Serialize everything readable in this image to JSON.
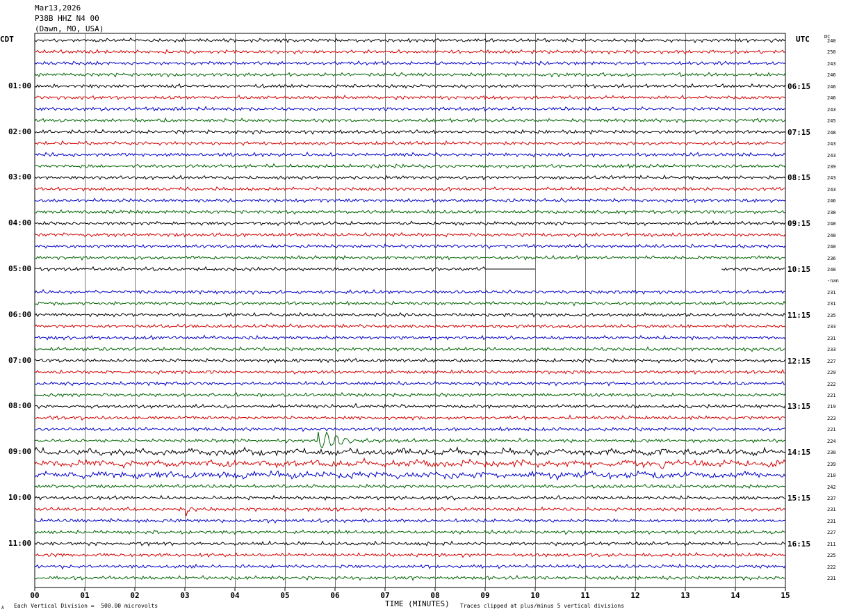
{
  "header": {
    "date": "Mar13,2026",
    "station": "P38B HHZ N4 00",
    "location": "(Dawn, MO, USA)"
  },
  "tz_left": "CDT",
  "tz_right": "UTC",
  "dc_header": "DC",
  "footer": {
    "xaxis_title": "TIME (MINUTES)",
    "scale_note": "Each Vertical Division =  500.00 microvolts",
    "clip_note": "Traces clipped at plus/minus 5 vertical divisions",
    "mark": "A"
  },
  "colors": {
    "trace_cycle": [
      "#000000",
      "#d40000",
      "#0000c8",
      "#006400"
    ],
    "grid": "#000000"
  },
  "chart_data": {
    "type": "line",
    "title": "",
    "xlabel": "TIME (MINUTES)",
    "xlim": [
      0,
      15
    ],
    "x_ticks": [
      "00",
      "01",
      "02",
      "03",
      "04",
      "05",
      "06",
      "07",
      "08",
      "09",
      "10",
      "11",
      "12",
      "13",
      "14",
      "15"
    ],
    "row_count": 48,
    "left_time_labels": [
      {
        "row": 4,
        "text": "01:00"
      },
      {
        "row": 8,
        "text": "02:00"
      },
      {
        "row": 12,
        "text": "03:00"
      },
      {
        "row": 16,
        "text": "04:00"
      },
      {
        "row": 20,
        "text": "05:00"
      },
      {
        "row": 24,
        "text": "06:00"
      },
      {
        "row": 28,
        "text": "07:00"
      },
      {
        "row": 32,
        "text": "08:00"
      },
      {
        "row": 36,
        "text": "09:00"
      },
      {
        "row": 40,
        "text": "10:00"
      },
      {
        "row": 44,
        "text": "11:00"
      }
    ],
    "right_time_labels": [
      {
        "row": 4,
        "text": "06:15"
      },
      {
        "row": 8,
        "text": "07:15"
      },
      {
        "row": 12,
        "text": "08:15"
      },
      {
        "row": 16,
        "text": "09:15"
      },
      {
        "row": 20,
        "text": "10:15"
      },
      {
        "row": 24,
        "text": "11:15"
      },
      {
        "row": 28,
        "text": "12:15"
      },
      {
        "row": 32,
        "text": "13:15"
      },
      {
        "row": 36,
        "text": "14:15"
      },
      {
        "row": 40,
        "text": "15:15"
      },
      {
        "row": 44,
        "text": "16:15"
      }
    ],
    "dc_offsets": [
      "240",
      "250",
      "243",
      "246",
      "246",
      "246",
      "243",
      "245",
      "248",
      "243",
      "243",
      "239",
      "243",
      "243",
      "246",
      "238",
      "240",
      "240",
      "240",
      "236",
      "240",
      "-nan",
      "231",
      "231",
      "235",
      "233",
      "231",
      "233",
      "227",
      "229",
      "222",
      "221",
      "219",
      "223",
      "221",
      "224",
      "230",
      "239",
      "210",
      "242",
      "237",
      "231",
      "231",
      "227",
      "211",
      "225",
      "222",
      "231"
    ],
    "gap_rows": [
      21
    ],
    "partial_gaps": [
      {
        "row": 20,
        "from_minute": 10.0,
        "to_minute": 13.7
      }
    ],
    "flat_segments": [
      {
        "row": 20,
        "from_minute": 9.0,
        "to_minute": 10.0
      }
    ],
    "noisy_rows": [
      36,
      37,
      38
    ],
    "events": [
      {
        "row": 35,
        "minute": 5.65,
        "amplitude": 16,
        "decay_minutes": 1.2
      },
      {
        "row": 41,
        "minute": 3.0,
        "amplitude": 12,
        "decay_minutes": 0.25
      },
      {
        "row": 32,
        "minute": 6.4,
        "amplitude": 5,
        "decay_minutes": 0.15
      },
      {
        "row": 37,
        "minute": 12.5,
        "amplitude": 8,
        "decay_minutes": 0.5
      }
    ]
  }
}
